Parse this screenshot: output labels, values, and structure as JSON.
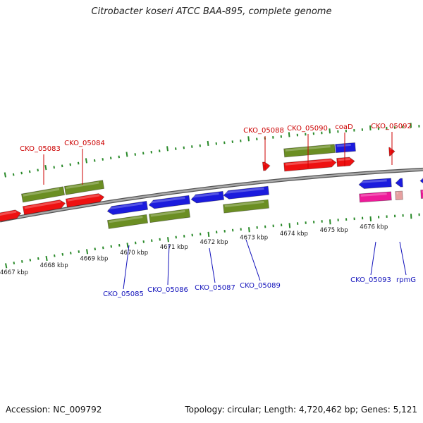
{
  "header": {
    "title": "Citrobacter koseri ATCC BAA-895, complete genome"
  },
  "footer": {
    "accession": "Accession: NC_009792",
    "summary": "Topology: circular; Length: 4,720,462 bp; Genes: 5,121"
  },
  "colors": {
    "backbone": "#808080",
    "cds_forward": "#ee1111",
    "cds_reverse": "#1b1bdd",
    "gene": "#6b8e23",
    "rna": "#ee1a99",
    "rna_pale": "#e6a0a0",
    "label_forward": "#cc0000",
    "label_reverse": "#1111bb",
    "tick": "#2a8a2a"
  },
  "axis": {
    "ticks": [
      {
        "label": "4667 kbp"
      },
      {
        "label": "4668 kbp"
      },
      {
        "label": "4669 kbp"
      },
      {
        "label": "4670 kbp"
      },
      {
        "label": "4671 kbp"
      },
      {
        "label": "4672 kbp"
      },
      {
        "label": "4673 kbp"
      },
      {
        "label": "4674 kbp"
      },
      {
        "label": "4675 kbp"
      },
      {
        "label": "4676 kbp"
      }
    ]
  },
  "genes_forward": [
    {
      "label": "CKO_05083"
    },
    {
      "label": "CKO_05084"
    },
    {
      "label": "CKO_05088"
    },
    {
      "label": "CKO_05090"
    },
    {
      "label": "coaD"
    },
    {
      "label": "CKO_05092"
    }
  ],
  "genes_reverse": [
    {
      "label": "CKO_05085"
    },
    {
      "label": "CKO_05086"
    },
    {
      "label": "CKO_05087"
    },
    {
      "label": "CKO_05089"
    },
    {
      "label": "CKO_05093"
    },
    {
      "label": "rpmG"
    }
  ]
}
